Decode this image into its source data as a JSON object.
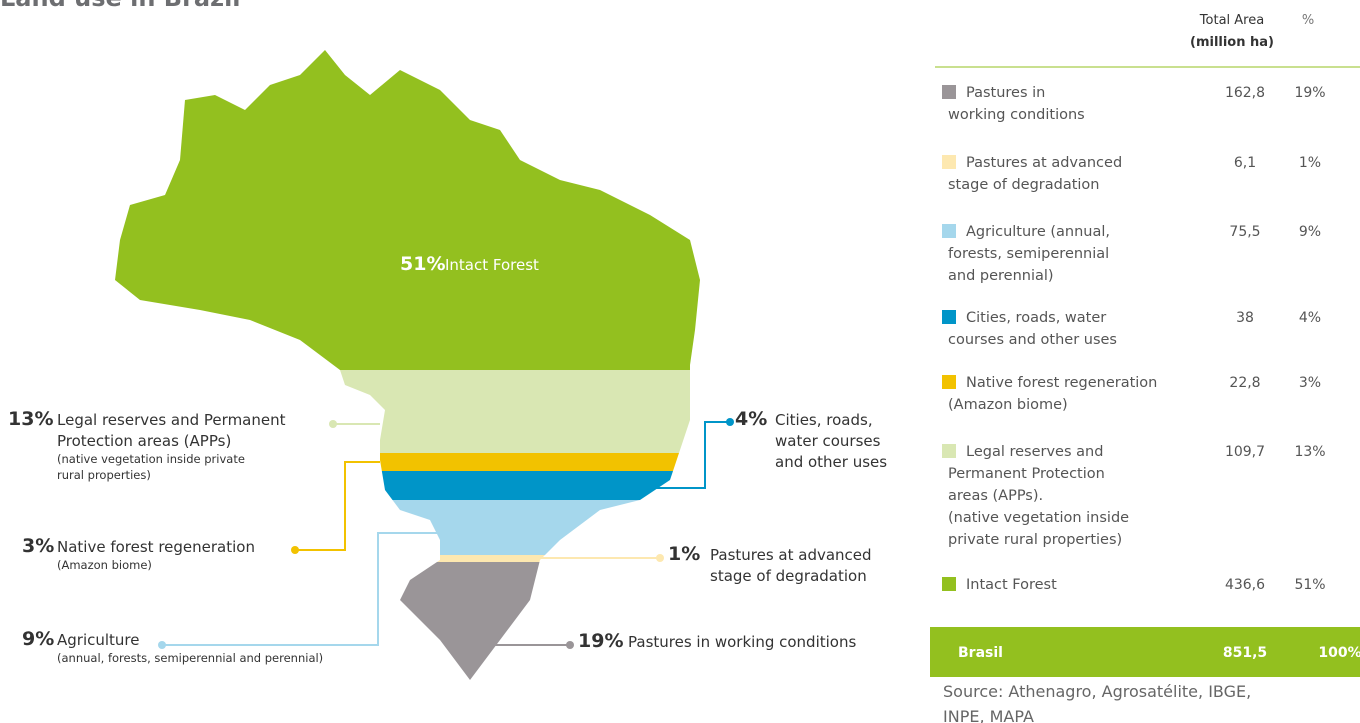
{
  "title": "Land use in Brazil",
  "map": {
    "labels": [
      {
        "pct": "51%",
        "lines": [
          "Intact Forest"
        ],
        "notes": []
      },
      {
        "pct": "13%",
        "lines": [
          "Legal reserves and Permanent",
          "Protection areas (APPs)"
        ],
        "notes": [
          "(native vegetation inside private",
          "rural properties)"
        ]
      },
      {
        "pct": "3%",
        "lines": [
          "Native forest regeneration"
        ],
        "notes": [
          "(Amazon biome)"
        ]
      },
      {
        "pct": "9%",
        "lines": [
          "Agriculture"
        ],
        "notes": [
          "(annual, forests,  semiperennial and perennial)"
        ]
      },
      {
        "pct": "4%",
        "lines": [
          "Cities, roads,",
          "water courses",
          "and other uses"
        ],
        "notes": []
      },
      {
        "pct": "1%",
        "lines": [
          "Pastures at advanced",
          "stage of degradation"
        ],
        "notes": []
      },
      {
        "pct": "19%",
        "lines": [
          "Pastures in working conditions"
        ],
        "notes": []
      }
    ]
  },
  "table": {
    "header": {
      "area": "Total Area",
      "unit": "(million ha)",
      "pct": "%"
    },
    "rows": [
      {
        "color": "#9a9598",
        "label": [
          "Pastures in",
          "working conditions"
        ],
        "area": "162,8",
        "pct": "19%"
      },
      {
        "color": "#fde8b0",
        "label": [
          "Pastures at advanced",
          "stage of degradation"
        ],
        "area": "6,1",
        "pct": "1%"
      },
      {
        "color": "#a5d7ec",
        "label": [
          "Agriculture (annual,",
          "forests, semiperennial",
          "and perennial)"
        ],
        "area": "75,5",
        "pct": "9%"
      },
      {
        "color": "#0095c8",
        "label": [
          "Cities, roads, water",
          "courses and other uses"
        ],
        "area": "38",
        "pct": "4%"
      },
      {
        "color": "#f2c200",
        "label": [
          "Native forest regeneration",
          "(Amazon biome)"
        ],
        "area": "22,8",
        "pct": "3%"
      },
      {
        "color": "#d9e7b3",
        "label": [
          "Legal reserves and",
          "Permanent Protection",
          "areas (APPs).",
          "(native vegetation inside",
          "private rural properties)"
        ],
        "area": "109,7",
        "pct": "13%"
      },
      {
        "color": "#93c01f",
        "label": [
          "Intact Forest"
        ],
        "area": "436,6",
        "pct": "51%"
      }
    ],
    "total": {
      "label": "Brasil",
      "area": "851,5",
      "pct": "100%"
    }
  },
  "source": [
    "Source: Athenagro, Agrosatélite, IBGE,",
    "INPE, MAPA"
  ]
}
